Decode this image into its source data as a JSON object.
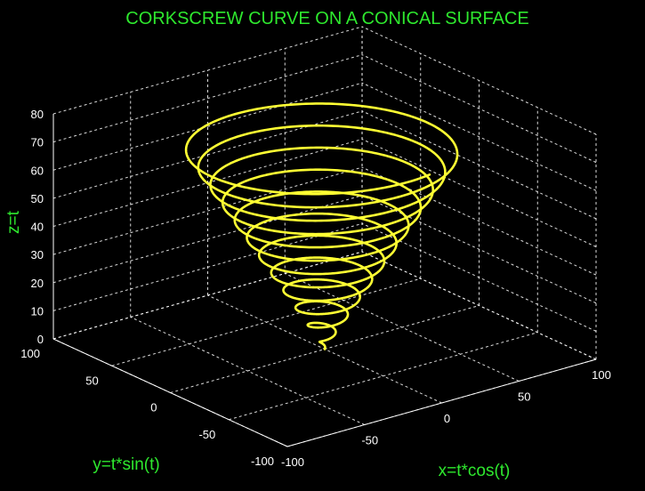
{
  "chart_data": {
    "type": "line3d",
    "title": "CORKSCREW CURVE ON A CONICAL SURFACE",
    "xlabel": "x=t*cos(t)",
    "ylabel": "y=t*sin(t)",
    "zlabel": "z=t",
    "xlim": [
      -100,
      100
    ],
    "ylim": [
      -100,
      100
    ],
    "zlim": [
      0,
      80
    ],
    "xticks": [
      "-100",
      "-50",
      "0",
      "50",
      "100"
    ],
    "yticks": [
      "-100",
      "-50",
      "0",
      "50",
      "100"
    ],
    "zticks": [
      "0",
      "10",
      "20",
      "30",
      "40",
      "50",
      "60",
      "70",
      "80"
    ],
    "grid": true,
    "series": [
      {
        "x": "t*cos(t)",
        "y": "t*sin(t)",
        "z": "t",
        "t_range": [
          0,
          74
        ],
        "color": "#ffff33"
      }
    ]
  }
}
